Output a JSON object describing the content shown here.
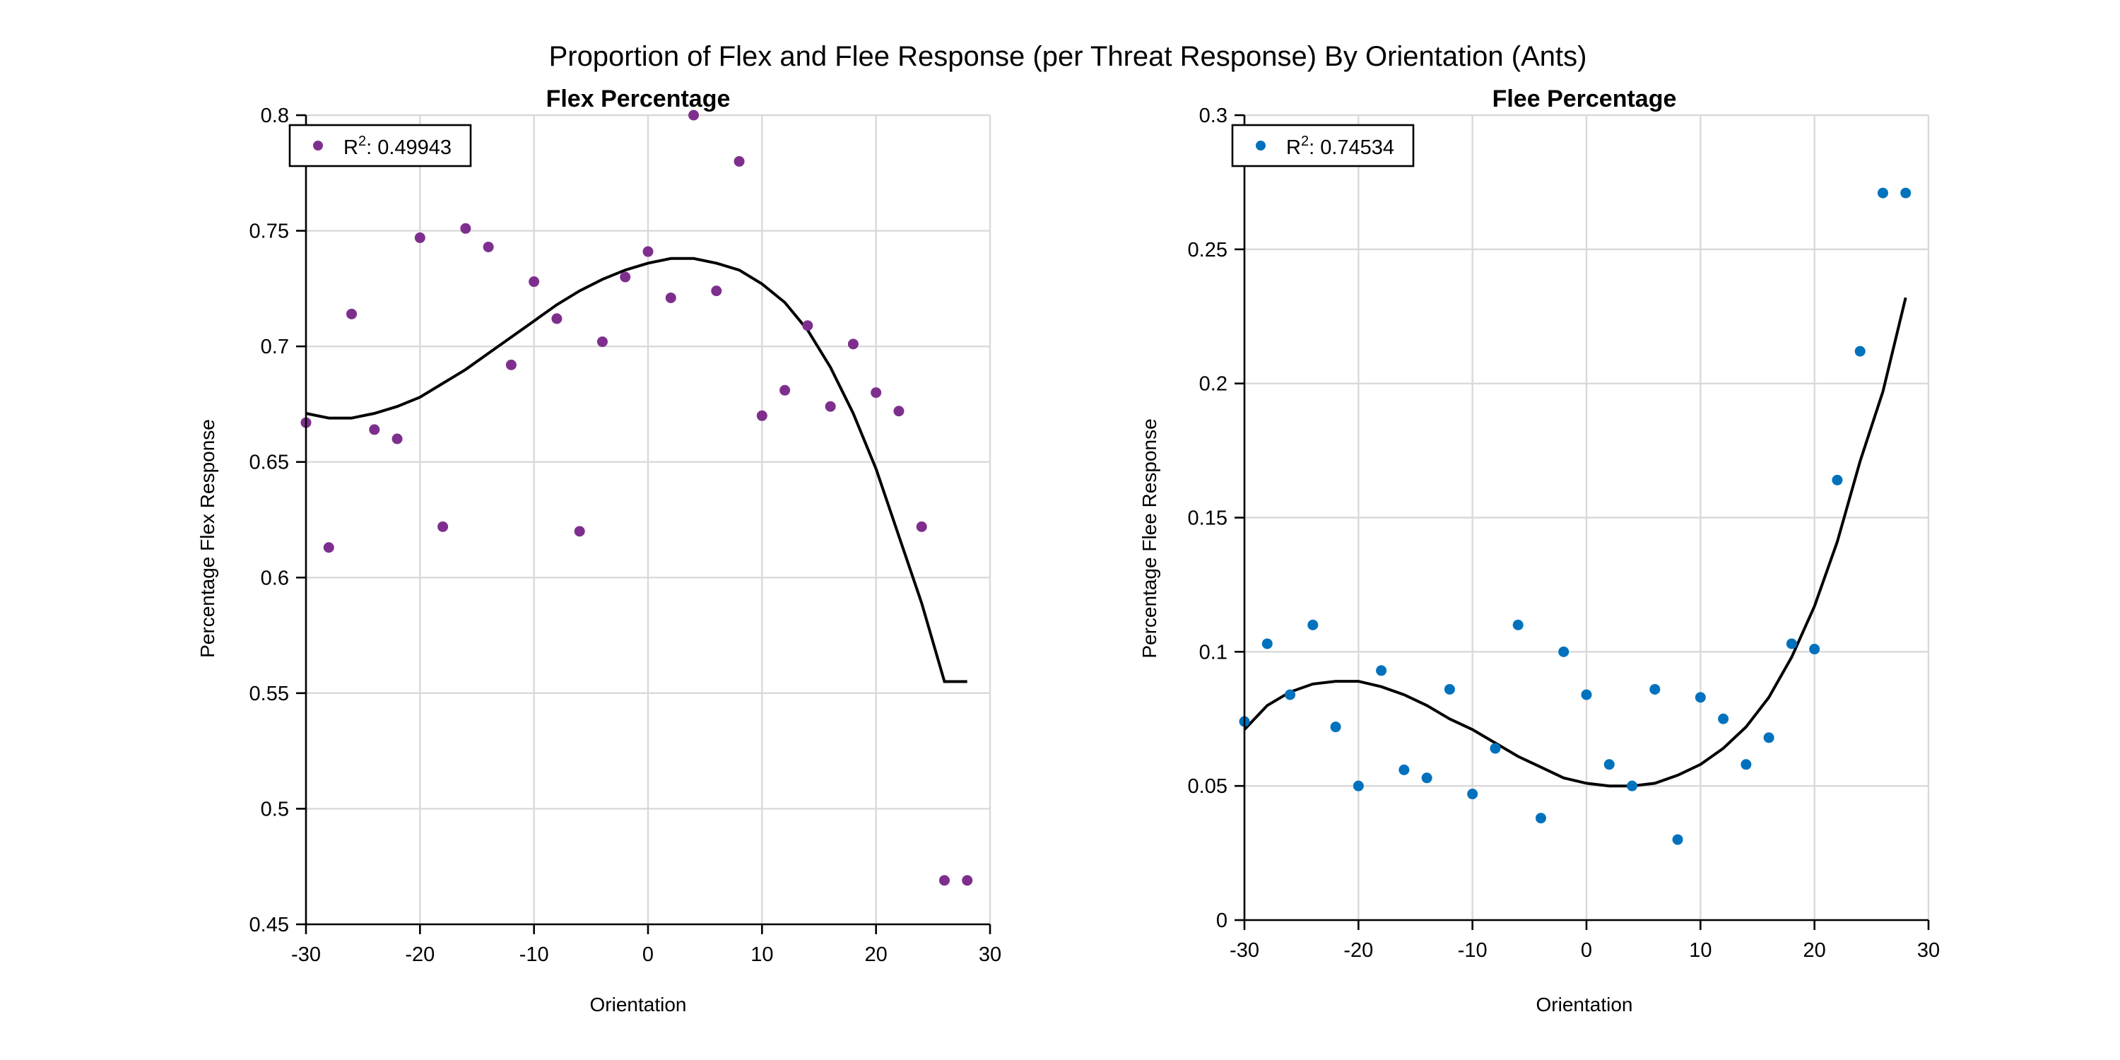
{
  "figure_title": "Proportion of Flex and Flee Response (per Threat Response) By Orientation (Ants)",
  "chart_data": [
    {
      "type": "scatter",
      "title": "Flex Percentage",
      "xlabel": "Orientation",
      "ylabel": "Percentage Flex Response",
      "xlim": [
        -30,
        30
      ],
      "ylim": [
        0.45,
        0.8
      ],
      "xticks": [
        -30,
        -20,
        -10,
        0,
        10,
        20,
        30
      ],
      "xtick_labels": [
        "-30",
        "-20",
        "-10",
        "0",
        "10",
        "20",
        "30"
      ],
      "yticks": [
        0.45,
        0.5,
        0.55,
        0.6,
        0.65,
        0.7,
        0.75,
        0.8
      ],
      "ytick_labels": [
        "0.45",
        "0.5",
        "0.55",
        "0.6",
        "0.65",
        "0.7",
        "0.75",
        "0.8"
      ],
      "grid": true,
      "legend": {
        "position": "top-left",
        "label_prefix": "R",
        "label_superscript": "2",
        "label_value": ": 0.49943"
      },
      "marker_color": "#7E2F8E",
      "series": [
        {
          "x": [
            -30,
            -28,
            -26,
            -24,
            -22,
            -20,
            -18,
            -16,
            -14,
            -12,
            -10,
            -8,
            -6,
            -4,
            -2,
            0,
            2,
            4,
            6,
            8,
            10,
            12,
            14,
            16,
            18,
            20,
            22,
            24,
            26,
            28
          ],
          "y": [
            0.667,
            0.613,
            0.714,
            0.664,
            0.66,
            0.747,
            0.622,
            0.751,
            0.743,
            0.692,
            0.728,
            0.712,
            0.62,
            0.702,
            0.73,
            0.741,
            0.721,
            0.8,
            0.724,
            0.78,
            0.67,
            0.681,
            0.709,
            0.674,
            0.701,
            0.68,
            0.672,
            0.622,
            0.469,
            0.469
          ]
        }
      ],
      "fit": {
        "color": "#000000",
        "x": [
          -30,
          -28,
          -26,
          -24,
          -22,
          -20,
          -18,
          -16,
          -14,
          -12,
          -10,
          -8,
          -6,
          -4,
          -2,
          0,
          2,
          4,
          6,
          8,
          10,
          12,
          14,
          16,
          18,
          20,
          22,
          24,
          26,
          28
        ],
        "y": [
          0.671,
          0.669,
          0.669,
          0.671,
          0.674,
          0.678,
          0.684,
          0.69,
          0.697,
          0.704,
          0.711,
          0.718,
          0.724,
          0.729,
          0.733,
          0.736,
          0.738,
          0.738,
          0.736,
          0.733,
          0.727,
          0.719,
          0.707,
          0.691,
          0.671,
          0.647,
          0.618,
          0.589,
          0.555,
          0.555
        ]
      }
    },
    {
      "type": "scatter",
      "title": "Flee Percentage",
      "xlabel": "Orientation",
      "ylabel": "Percentage Flee Response",
      "xlim": [
        -30,
        30
      ],
      "ylim": [
        0,
        0.3
      ],
      "xticks": [
        -30,
        -20,
        -10,
        0,
        10,
        20,
        30
      ],
      "xtick_labels": [
        "-30",
        "-20",
        "-10",
        "0",
        "10",
        "20",
        "30"
      ],
      "yticks": [
        0,
        0.05,
        0.1,
        0.15,
        0.2,
        0.25,
        0.3
      ],
      "ytick_labels": [
        "0",
        "0.05",
        "0.1",
        "0.15",
        "0.2",
        "0.25",
        "0.3"
      ],
      "grid": true,
      "legend": {
        "position": "top-left",
        "label_prefix": "R",
        "label_superscript": "2",
        "label_value": ": 0.74534"
      },
      "marker_color": "#0072BD",
      "series": [
        {
          "x": [
            -30,
            -28,
            -26,
            -24,
            -22,
            -20,
            -18,
            -16,
            -14,
            -12,
            -10,
            -8,
            -6,
            -4,
            -2,
            0,
            2,
            4,
            6,
            8,
            10,
            12,
            14,
            16,
            18,
            20,
            22,
            24,
            26,
            28
          ],
          "y": [
            0.074,
            0.103,
            0.084,
            0.11,
            0.072,
            0.05,
            0.093,
            0.056,
            0.053,
            0.086,
            0.047,
            0.064,
            0.11,
            0.038,
            0.1,
            0.084,
            0.058,
            0.05,
            0.086,
            0.03,
            0.083,
            0.075,
            0.058,
            0.068,
            0.103,
            0.101,
            0.164,
            0.212,
            0.271,
            0.271
          ]
        }
      ],
      "fit": {
        "color": "#000000",
        "x": [
          -30,
          -28,
          -26,
          -24,
          -22,
          -20,
          -18,
          -16,
          -14,
          -12,
          -10,
          -8,
          -6,
          -4,
          -2,
          0,
          2,
          4,
          6,
          8,
          10,
          12,
          14,
          16,
          18,
          20,
          22,
          24,
          26,
          28
        ],
        "y": [
          0.071,
          0.08,
          0.085,
          0.088,
          0.089,
          0.089,
          0.087,
          0.084,
          0.08,
          0.075,
          0.071,
          0.066,
          0.061,
          0.057,
          0.053,
          0.051,
          0.05,
          0.05,
          0.051,
          0.054,
          0.058,
          0.064,
          0.072,
          0.083,
          0.098,
          0.117,
          0.141,
          0.171,
          0.197,
          0.232
        ]
      }
    }
  ]
}
